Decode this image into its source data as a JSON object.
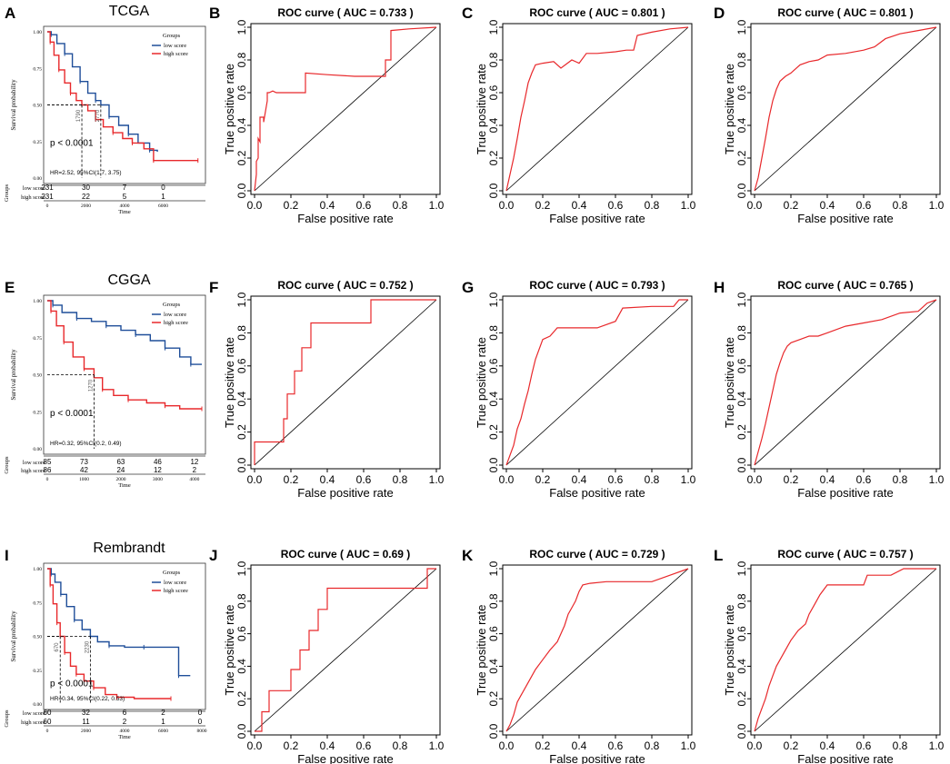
{
  "colors": {
    "low": "#1f4e99",
    "high": "#e8282b",
    "roc": "#e8282b",
    "axis": "#000000",
    "text": "#000000"
  },
  "chart_data": [
    {
      "id": "A",
      "type": "kaplan-meier",
      "title": "TCGA",
      "xlabel": "Time",
      "ylabel": "Survival probability",
      "xlim": [
        0,
        8000
      ],
      "xticks": [
        "0",
        "2000",
        "4000",
        "6000"
      ],
      "ylim": [
        0,
        1
      ],
      "yticks": [
        "0.00",
        "0.25",
        "0.50",
        "0.75",
        "1.00"
      ],
      "legend_title": "Groups",
      "pvalue": "p < 0.0001",
      "hr": "HR=2.52, 95%CI(1.7, 3.75)",
      "median_labels": [
        "1790",
        "2770"
      ],
      "medians": [
        1790,
        2770
      ],
      "risk_title": "Groups",
      "series": [
        {
          "name": "low score",
          "risk": [
            "231",
            "30",
            "7",
            "0"
          ],
          "x": [
            0,
            200,
            500,
            900,
            1300,
            1700,
            2100,
            2500,
            2770,
            3200,
            3700,
            4200,
            4700,
            5300,
            5700
          ],
          "y": [
            1.0,
            0.98,
            0.92,
            0.85,
            0.76,
            0.66,
            0.58,
            0.53,
            0.5,
            0.42,
            0.36,
            0.3,
            0.24,
            0.19,
            0.18
          ]
        },
        {
          "name": "high score",
          "risk": [
            "231",
            "22",
            "5",
            "1"
          ],
          "x": [
            0,
            150,
            350,
            600,
            900,
            1200,
            1500,
            1790,
            2100,
            2500,
            2900,
            3400,
            3900,
            4400,
            5000,
            5500,
            6200,
            7800
          ],
          "y": [
            1.0,
            0.93,
            0.84,
            0.74,
            0.65,
            0.58,
            0.53,
            0.5,
            0.46,
            0.4,
            0.35,
            0.31,
            0.27,
            0.24,
            0.2,
            0.12,
            0.12,
            0.12
          ]
        }
      ],
      "xticks_risk": [
        "0",
        "2000",
        "4000",
        "6000"
      ]
    },
    {
      "id": "E",
      "type": "kaplan-meier",
      "title": "CGGA",
      "xlabel": "Time",
      "ylabel": "Survival probability",
      "xlim": [
        0,
        4200
      ],
      "xticks": [
        "0",
        "1000",
        "2000",
        "3000",
        "4000"
      ],
      "ylim": [
        0,
        1
      ],
      "yticks": [
        "0.00",
        "0.25",
        "0.50",
        "0.75",
        "1.00"
      ],
      "legend_title": "Groups",
      "pvalue": "p < 0.0001",
      "hr": "HR=0.32, 95%CI(0.2, 0.49)",
      "median_labels": [
        "1270"
      ],
      "medians": [
        1270
      ],
      "risk_title": "Groups",
      "series": [
        {
          "name": "low score",
          "risk": [
            "85",
            "73",
            "63",
            "46",
            "12"
          ],
          "x": [
            0,
            150,
            400,
            800,
            1200,
            1600,
            2000,
            2400,
            2800,
            3200,
            3600,
            3900,
            4200
          ],
          "y": [
            1.0,
            0.97,
            0.92,
            0.88,
            0.86,
            0.83,
            0.8,
            0.77,
            0.73,
            0.68,
            0.62,
            0.57,
            0.57
          ]
        },
        {
          "name": "high score",
          "risk": [
            "86",
            "42",
            "24",
            "12",
            "2"
          ],
          "x": [
            0,
            100,
            250,
            450,
            700,
            1000,
            1270,
            1500,
            1800,
            2200,
            2700,
            3200,
            3600,
            4200
          ],
          "y": [
            1.0,
            0.93,
            0.83,
            0.72,
            0.62,
            0.54,
            0.48,
            0.4,
            0.36,
            0.33,
            0.31,
            0.29,
            0.27,
            0.27
          ]
        }
      ],
      "xticks_risk": [
        "0",
        "1000",
        "2000",
        "3000",
        "4000"
      ]
    },
    {
      "id": "I",
      "type": "kaplan-meier",
      "title": "Rembrandt",
      "xlabel": "Time",
      "ylabel": "Survival probability",
      "xlim": [
        0,
        8000
      ],
      "xticks": [
        "0",
        "2000",
        "4000",
        "6000",
        "8000"
      ],
      "ylim": [
        0,
        1
      ],
      "yticks": [
        "0.00",
        "0.25",
        "0.50",
        "0.75",
        "1.00"
      ],
      "legend_title": "Groups",
      "pvalue": "p < 0.0001",
      "hr": "HR=0.34, 95%CI(0.22, 0.53)",
      "median_labels": [
        "670",
        "2230"
      ],
      "medians": [
        670,
        2230
      ],
      "risk_title": "Groups",
      "series": [
        {
          "name": "low score",
          "risk": [
            "60",
            "32",
            "6",
            "2",
            "0"
          ],
          "x": [
            0,
            200,
            400,
            700,
            1000,
            1400,
            1800,
            2230,
            2600,
            3200,
            4000,
            5000,
            6500,
            6800,
            7400
          ],
          "y": [
            1.0,
            0.96,
            0.9,
            0.81,
            0.72,
            0.62,
            0.55,
            0.5,
            0.46,
            0.43,
            0.42,
            0.42,
            0.42,
            0.21,
            0.21
          ]
        },
        {
          "name": "high score",
          "risk": [
            "60",
            "11",
            "2",
            "1",
            "0"
          ],
          "x": [
            0,
            150,
            300,
            500,
            670,
            900,
            1200,
            1500,
            1900,
            2400,
            3000,
            3600,
            4500,
            6400
          ],
          "y": [
            1.0,
            0.88,
            0.74,
            0.6,
            0.5,
            0.38,
            0.28,
            0.22,
            0.17,
            0.12,
            0.07,
            0.05,
            0.04,
            0.04
          ]
        }
      ],
      "xticks_risk": [
        "0",
        "2000",
        "4000",
        "6000",
        "8000"
      ]
    },
    {
      "id": "B",
      "type": "line",
      "subtype": "roc",
      "title": "ROC curve ( AUC =  0.733 )",
      "xlabel": "False positive rate",
      "ylabel": "True positive rate",
      "xlim": [
        0,
        1
      ],
      "ylim": [
        0,
        1
      ],
      "xticks": [
        "0.0",
        "0.2",
        "0.4",
        "0.6",
        "0.8",
        "1.0"
      ],
      "yticks": [
        "0.0",
        "0.2",
        "0.4",
        "0.6",
        "0.8",
        "1.0"
      ],
      "x": [
        0,
        0.01,
        0.01,
        0.02,
        0.02,
        0.03,
        0.03,
        0.05,
        0.05,
        0.07,
        0.07,
        0.08,
        0.1,
        0.12,
        0.16,
        0.2,
        0.28,
        0.28,
        0.4,
        0.55,
        0.7,
        0.72,
        0.72,
        0.75,
        0.75,
        0.85,
        1.0
      ],
      "y": [
        0,
        0.1,
        0.18,
        0.2,
        0.32,
        0.3,
        0.45,
        0.45,
        0.42,
        0.55,
        0.6,
        0.6,
        0.61,
        0.6,
        0.6,
        0.6,
        0.6,
        0.72,
        0.71,
        0.7,
        0.7,
        0.7,
        0.8,
        0.8,
        0.98,
        0.99,
        1.0
      ]
    },
    {
      "id": "C",
      "type": "line",
      "subtype": "roc",
      "title": "ROC curve ( AUC =  0.801 )",
      "xlabel": "False positive rate",
      "ylabel": "True positive rate",
      "xlim": [
        0,
        1
      ],
      "ylim": [
        0,
        1
      ],
      "xticks": [
        "0.0",
        "0.2",
        "0.4",
        "0.6",
        "0.8",
        "1.0"
      ],
      "yticks": [
        "0.0",
        "0.2",
        "0.4",
        "0.6",
        "0.8",
        "1.0"
      ],
      "x": [
        0,
        0.02,
        0.04,
        0.06,
        0.08,
        0.1,
        0.12,
        0.14,
        0.16,
        0.2,
        0.26,
        0.3,
        0.36,
        0.4,
        0.44,
        0.5,
        0.6,
        0.66,
        0.7,
        0.72,
        0.8,
        0.9,
        1.0
      ],
      "y": [
        0,
        0.1,
        0.2,
        0.32,
        0.45,
        0.55,
        0.66,
        0.72,
        0.77,
        0.78,
        0.79,
        0.75,
        0.8,
        0.78,
        0.84,
        0.84,
        0.85,
        0.86,
        0.86,
        0.95,
        0.97,
        0.99,
        1.0
      ]
    },
    {
      "id": "D",
      "type": "line",
      "subtype": "roc",
      "title": "ROC curve ( AUC =  0.801 )",
      "xlabel": "False positive rate",
      "ylabel": "True positive rate",
      "xlim": [
        0,
        1
      ],
      "ylim": [
        0,
        1
      ],
      "xticks": [
        "0.0",
        "0.2",
        "0.4",
        "0.6",
        "0.8",
        "1.0"
      ],
      "yticks": [
        "0.0",
        "0.2",
        "0.4",
        "0.6",
        "0.8",
        "1.0"
      ],
      "x": [
        0,
        0.02,
        0.04,
        0.06,
        0.08,
        0.1,
        0.12,
        0.14,
        0.17,
        0.2,
        0.25,
        0.3,
        0.35,
        0.4,
        0.5,
        0.6,
        0.66,
        0.72,
        0.8,
        0.9,
        1.0
      ],
      "y": [
        0,
        0.08,
        0.2,
        0.32,
        0.45,
        0.55,
        0.62,
        0.67,
        0.7,
        0.72,
        0.77,
        0.79,
        0.8,
        0.83,
        0.84,
        0.86,
        0.88,
        0.93,
        0.96,
        0.98,
        1.0
      ]
    },
    {
      "id": "F",
      "type": "line",
      "subtype": "roc",
      "title": "ROC curve ( AUC =  0.752 )",
      "xlabel": "False positive rate",
      "ylabel": "True positive rate",
      "xlim": [
        0,
        1
      ],
      "ylim": [
        0,
        1
      ],
      "xticks": [
        "0.0",
        "0.2",
        "0.4",
        "0.6",
        "0.8",
        "1.0"
      ],
      "yticks": [
        "0.0",
        "0.2",
        "0.4",
        "0.6",
        "0.8",
        "1.0"
      ],
      "x": [
        0,
        0,
        0.16,
        0.16,
        0.18,
        0.18,
        0.22,
        0.22,
        0.26,
        0.26,
        0.31,
        0.31,
        0.64,
        0.64,
        1.0
      ],
      "y": [
        0,
        0.14,
        0.14,
        0.28,
        0.28,
        0.43,
        0.43,
        0.57,
        0.57,
        0.71,
        0.71,
        0.86,
        0.86,
        1.0,
        1.0
      ]
    },
    {
      "id": "G",
      "type": "line",
      "subtype": "roc",
      "title": "ROC curve ( AUC =  0.793 )",
      "xlabel": "False positive rate",
      "ylabel": "True positive rate",
      "xlim": [
        0,
        1
      ],
      "ylim": [
        0,
        1
      ],
      "xticks": [
        "0.0",
        "0.2",
        "0.4",
        "0.6",
        "0.8",
        "1.0"
      ],
      "yticks": [
        "0.0",
        "0.2",
        "0.4",
        "0.6",
        "0.8",
        "1.0"
      ],
      "x": [
        0,
        0.02,
        0.04,
        0.06,
        0.08,
        0.1,
        0.12,
        0.14,
        0.16,
        0.18,
        0.2,
        0.24,
        0.28,
        0.36,
        0.5,
        0.6,
        0.64,
        0.8,
        0.92,
        0.95,
        1.0
      ],
      "y": [
        0,
        0.06,
        0.12,
        0.22,
        0.28,
        0.37,
        0.45,
        0.55,
        0.64,
        0.7,
        0.76,
        0.78,
        0.83,
        0.83,
        0.83,
        0.87,
        0.95,
        0.96,
        0.96,
        1.0,
        1.0
      ]
    },
    {
      "id": "H",
      "type": "line",
      "subtype": "roc",
      "title": "ROC curve ( AUC =  0.765 )",
      "xlabel": "False positive rate",
      "ylabel": "True positive rate",
      "xlim": [
        0,
        1
      ],
      "ylim": [
        0,
        1
      ],
      "xticks": [
        "0.0",
        "0.2",
        "0.4",
        "0.6",
        "0.8",
        "1.0"
      ],
      "yticks": [
        "0.0",
        "0.2",
        "0.4",
        "0.6",
        "0.8",
        "1.0"
      ],
      "x": [
        0,
        0.02,
        0.04,
        0.06,
        0.08,
        0.1,
        0.12,
        0.14,
        0.16,
        0.18,
        0.2,
        0.25,
        0.3,
        0.35,
        0.4,
        0.5,
        0.6,
        0.7,
        0.8,
        0.9,
        0.95,
        1.0
      ],
      "y": [
        0,
        0.08,
        0.16,
        0.25,
        0.35,
        0.45,
        0.55,
        0.62,
        0.68,
        0.72,
        0.74,
        0.76,
        0.78,
        0.78,
        0.8,
        0.84,
        0.86,
        0.88,
        0.92,
        0.93,
        0.98,
        1.0
      ]
    },
    {
      "id": "J",
      "type": "line",
      "subtype": "roc",
      "title": "ROC curve ( AUC =  0.69 )",
      "xlabel": "False positive rate",
      "ylabel": "True positive rate",
      "xlim": [
        0,
        1
      ],
      "ylim": [
        0,
        1
      ],
      "xticks": [
        "0.0",
        "0.2",
        "0.4",
        "0.6",
        "0.8",
        "1.0"
      ],
      "yticks": [
        "0.0",
        "0.2",
        "0.4",
        "0.6",
        "0.8",
        "1.0"
      ],
      "x": [
        0,
        0.04,
        0.04,
        0.08,
        0.08,
        0.2,
        0.2,
        0.25,
        0.25,
        0.3,
        0.3,
        0.35,
        0.35,
        0.4,
        0.4,
        0.95,
        0.95,
        1.0
      ],
      "y": [
        0,
        0,
        0.12,
        0.12,
        0.25,
        0.25,
        0.38,
        0.38,
        0.5,
        0.5,
        0.62,
        0.62,
        0.75,
        0.75,
        0.88,
        0.88,
        1.0,
        1.0
      ]
    },
    {
      "id": "K",
      "type": "line",
      "subtype": "roc",
      "title": "ROC curve ( AUC =  0.729 )",
      "xlabel": "False positive rate",
      "ylabel": "True positive rate",
      "xlim": [
        0,
        1
      ],
      "ylim": [
        0,
        1
      ],
      "xticks": [
        "0.0",
        "0.2",
        "0.4",
        "0.6",
        "0.8",
        "1.0"
      ],
      "yticks": [
        "0.0",
        "0.2",
        "0.4",
        "0.6",
        "0.8",
        "1.0"
      ],
      "x": [
        0,
        0.02,
        0.04,
        0.06,
        0.08,
        0.12,
        0.16,
        0.2,
        0.24,
        0.28,
        0.3,
        0.32,
        0.34,
        0.36,
        0.38,
        0.4,
        0.42,
        0.46,
        0.55,
        0.7,
        0.8,
        0.9,
        1.0
      ],
      "y": [
        0,
        0.04,
        0.1,
        0.18,
        0.22,
        0.3,
        0.38,
        0.44,
        0.5,
        0.55,
        0.6,
        0.65,
        0.72,
        0.76,
        0.8,
        0.86,
        0.9,
        0.91,
        0.92,
        0.92,
        0.92,
        0.96,
        1.0
      ]
    },
    {
      "id": "L",
      "type": "line",
      "subtype": "roc",
      "title": "ROC curve ( AUC =  0.757 )",
      "xlabel": "False positive rate",
      "ylabel": "True positive rate",
      "xlim": [
        0,
        1
      ],
      "ylim": [
        0,
        1
      ],
      "xticks": [
        "0.0",
        "0.2",
        "0.4",
        "0.6",
        "0.8",
        "1.0"
      ],
      "yticks": [
        "0.0",
        "0.2",
        "0.4",
        "0.6",
        "0.8",
        "1.0"
      ],
      "x": [
        0,
        0.02,
        0.04,
        0.06,
        0.08,
        0.1,
        0.12,
        0.15,
        0.18,
        0.2,
        0.24,
        0.28,
        0.3,
        0.33,
        0.36,
        0.4,
        0.45,
        0.5,
        0.6,
        0.62,
        0.75,
        0.82,
        0.9,
        1.0
      ],
      "y": [
        0,
        0.08,
        0.14,
        0.2,
        0.28,
        0.34,
        0.4,
        0.46,
        0.52,
        0.56,
        0.62,
        0.66,
        0.72,
        0.78,
        0.84,
        0.9,
        0.9,
        0.9,
        0.9,
        0.96,
        0.96,
        1.0,
        1.0,
        1.0
      ]
    }
  ]
}
